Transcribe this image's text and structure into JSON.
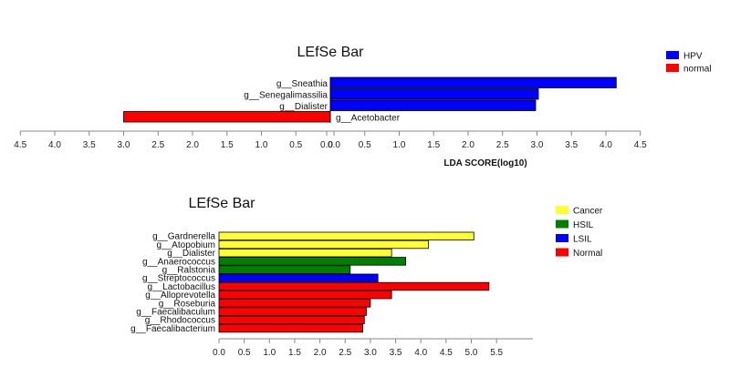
{
  "chart_data": [
    {
      "type": "bar",
      "orientation": "horizontal",
      "title": "LEfSe Bar",
      "xlabel": "LDA SCORE(log10)",
      "ylabel": "",
      "xlim": [
        -4.5,
        4.5
      ],
      "x_ticks": [
        "4.5",
        "4.0",
        "3.5",
        "3.0",
        "2.5",
        "2.0",
        "1.5",
        "1.0",
        "0.5",
        "0.0",
        "0.0",
        "0.5",
        "1.0",
        "1.5",
        "2.0",
        "2.5",
        "3.0",
        "3.5",
        "4.0",
        "4.5"
      ],
      "legend_position": "top-right",
      "legend": [
        {
          "name": "HPV",
          "color": "#0000ff"
        },
        {
          "name": "normal",
          "color": "#ff0000"
        }
      ],
      "bars": [
        {
          "label": "g__Sneathia",
          "value": 4.15,
          "group": "HPV"
        },
        {
          "label": "g__Senegalimassilia",
          "value": 3.02,
          "group": "HPV"
        },
        {
          "label": "g__Dialister",
          "value": 2.98,
          "group": "HPV"
        },
        {
          "label": "g__Acetobacter",
          "value": -3.0,
          "group": "normal"
        }
      ]
    },
    {
      "type": "bar",
      "orientation": "horizontal",
      "title": "LEfSe Bar",
      "xlabel": "",
      "ylabel": "",
      "xlim": [
        0,
        6.2
      ],
      "x_ticks": [
        "0.0",
        "0.5",
        "1.0",
        "1.5",
        "2.0",
        "2.5",
        "3.0",
        "3.5",
        "4.0",
        "4.5",
        "5.0",
        "5.5"
      ],
      "legend_position": "top-right",
      "legend": [
        {
          "name": "Cancer",
          "color": "#ffff33"
        },
        {
          "name": "HSIL",
          "color": "#008000"
        },
        {
          "name": "LSIL",
          "color": "#0000ff"
        },
        {
          "name": "Normal",
          "color": "#ff0000"
        }
      ],
      "bars": [
        {
          "label": "g__Gardnerella",
          "value": 5.05,
          "group": "Cancer"
        },
        {
          "label": "g__Atopobium",
          "value": 4.15,
          "group": "Cancer"
        },
        {
          "label": "g__Dialister",
          "value": 3.42,
          "group": "Cancer"
        },
        {
          "label": "g__Anaerococcus",
          "value": 3.7,
          "group": "HSIL"
        },
        {
          "label": "g__Ralstonia",
          "value": 2.6,
          "group": "HSIL"
        },
        {
          "label": "g__Streptococcus",
          "value": 3.15,
          "group": "LSIL"
        },
        {
          "label": "g__Lactobacillus",
          "value": 5.35,
          "group": "Normal"
        },
        {
          "label": "g__Alloprevotella",
          "value": 3.42,
          "group": "Normal"
        },
        {
          "label": "g__Roseburia",
          "value": 3.0,
          "group": "Normal"
        },
        {
          "label": "g__Faecalibaculum",
          "value": 2.92,
          "group": "Normal"
        },
        {
          "label": "g__Rhodococcus",
          "value": 2.88,
          "group": "Normal"
        },
        {
          "label": "g__Faecalibacterium",
          "value": 2.85,
          "group": "Normal"
        }
      ]
    }
  ]
}
